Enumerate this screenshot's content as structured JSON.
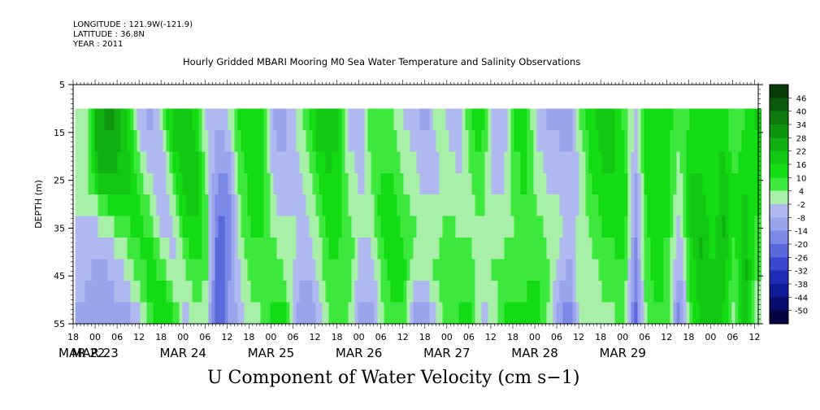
{
  "header": {
    "longitude": "LONGITUDE : 121.9W(-121.9)",
    "latitude": "LATITUDE : 36.8N",
    "year": "YEAR : 2011",
    "title": "Hourly Gridded MBARI Mooring M0 Sea Water Temperature and Salinity Observations"
  },
  "chart_data": {
    "type": "heatmap",
    "title": "Hourly Gridded MBARI Mooring M0 Sea Water Temperature and Salinity Observations",
    "xlabel": "",
    "ylabel": "DEPTH (m)",
    "variable": "U Component of Water Velocity (cm s-1)",
    "y_ticks": [
      5,
      15,
      25,
      35,
      45,
      55
    ],
    "y_range": [
      5,
      55
    ],
    "x_hour_ticks": [
      "18",
      "00",
      "06",
      "12",
      "18",
      "00",
      "06",
      "12",
      "18",
      "00",
      "06",
      "12",
      "18",
      "00",
      "06",
      "12",
      "18",
      "00",
      "06",
      "12",
      "18",
      "00",
      "06",
      "12",
      "18",
      "00",
      "06",
      "12",
      "18",
      "00",
      "06",
      "12",
      "18",
      "00",
      "06",
      "12",
      "18"
    ],
    "x_day_labels": [
      "MAR 22",
      "MAR 23",
      "MAR 24",
      "MAR 25",
      "MAR 26",
      "MAR 27",
      "MAR 28",
      "MAR 29"
    ],
    "colorbar_levels": [
      "46",
      "40",
      "34",
      "28",
      "22",
      "16",
      "10",
      "4",
      "-2",
      "-8",
      "-14",
      "-20",
      "-26",
      "-32",
      "-38",
      "-44",
      "-50"
    ],
    "colorbar_colors": [
      "#083a08",
      "#0a5a0a",
      "#0c7a0c",
      "#0e950e",
      "#10b010",
      "#12c812",
      "#14dc14",
      "#3ce83c",
      "#a8f0a8",
      "#b0b8f0",
      "#9aa4ec",
      "#7c88e6",
      "#5a68dc",
      "#3848d0",
      "#1e2cb8",
      "#101a96",
      "#080c6c",
      "#040440"
    ],
    "data_start_depth": 10,
    "grid": false,
    "columns": [
      {
        "t": 0.5,
        "v": [
          0,
          -1,
          -2,
          -1,
          -2,
          -3,
          -4,
          -5,
          -6,
          -10
        ]
      },
      {
        "t": 3,
        "v": [
          0,
          1,
          0,
          -1,
          -2,
          -4,
          -6,
          -6,
          -8,
          -12
        ]
      },
      {
        "t": 6,
        "v": [
          24,
          24,
          22,
          16,
          4,
          -2,
          -6,
          -10,
          -10,
          -12
        ]
      },
      {
        "t": 9,
        "v": [
          30,
          28,
          24,
          18,
          10,
          2,
          -4,
          -8,
          -10,
          -12
        ]
      },
      {
        "t": 12,
        "v": [
          26,
          24,
          22,
          18,
          12,
          6,
          0,
          -4,
          -6,
          -10
        ]
      },
      {
        "t": 15,
        "v": [
          12,
          14,
          16,
          18,
          14,
          10,
          6,
          2,
          -2,
          -8
        ]
      },
      {
        "t": 18,
        "v": [
          -6,
          -2,
          2,
          6,
          10,
          12,
          10,
          8,
          4,
          -2
        ]
      },
      {
        "t": 21,
        "v": [
          -10,
          -8,
          -6,
          -2,
          2,
          6,
          10,
          12,
          14,
          10
        ]
      },
      {
        "t": 24,
        "v": [
          4,
          -2,
          -6,
          -8,
          -8,
          -4,
          0,
          6,
          12,
          16
        ]
      },
      {
        "t": 27,
        "v": [
          18,
          16,
          12,
          8,
          2,
          -2,
          -4,
          -2,
          4,
          10
        ]
      },
      {
        "t": 30,
        "v": [
          20,
          22,
          20,
          18,
          16,
          12,
          8,
          4,
          -2,
          -6
        ]
      },
      {
        "t": 33,
        "v": [
          14,
          16,
          18,
          20,
          18,
          16,
          14,
          10,
          6,
          2
        ]
      },
      {
        "t": 36,
        "v": [
          -4,
          -2,
          0,
          2,
          4,
          6,
          6,
          4,
          2,
          -2
        ]
      },
      {
        "t": 39,
        "v": [
          -8,
          -10,
          -12,
          -16,
          -20,
          -22,
          -24,
          -24,
          -26,
          -28
        ]
      },
      {
        "t": 42,
        "v": [
          -2,
          -6,
          -10,
          -14,
          -16,
          -18,
          -18,
          -16,
          -14,
          -14
        ]
      },
      {
        "t": 45,
        "v": [
          12,
          10,
          8,
          6,
          4,
          2,
          0,
          -2,
          -4,
          -6
        ]
      },
      {
        "t": 48,
        "v": [
          16,
          14,
          14,
          12,
          12,
          10,
          8,
          6,
          4,
          2
        ]
      },
      {
        "t": 51,
        "v": [
          12,
          12,
          14,
          14,
          14,
          12,
          10,
          8,
          6,
          4
        ]
      },
      {
        "t": 54,
        "v": [
          -8,
          -6,
          -4,
          -2,
          0,
          2,
          6,
          8,
          10,
          12
        ]
      },
      {
        "t": 57,
        "v": [
          -10,
          -10,
          -8,
          -6,
          -4,
          -2,
          0,
          4,
          8,
          12
        ]
      },
      {
        "t": 60,
        "v": [
          -2,
          -4,
          -6,
          -6,
          -4,
          -2,
          -2,
          -4,
          -6,
          -8
        ]
      },
      {
        "t": 63,
        "v": [
          6,
          4,
          2,
          0,
          -2,
          -4,
          -6,
          -8,
          -10,
          -12
        ]
      },
      {
        "t": 66,
        "v": [
          18,
          16,
          12,
          8,
          4,
          2,
          0,
          -2,
          -6,
          -8
        ]
      },
      {
        "t": 69,
        "v": [
          22,
          20,
          18,
          16,
          14,
          12,
          10,
          8,
          6,
          4
        ]
      },
      {
        "t": 72,
        "v": [
          16,
          16,
          14,
          14,
          12,
          12,
          10,
          10,
          8,
          6
        ]
      },
      {
        "t": 75,
        "v": [
          -4,
          -2,
          0,
          2,
          4,
          6,
          8,
          8,
          6,
          4
        ]
      },
      {
        "t": 78,
        "v": [
          -8,
          -6,
          -4,
          -4,
          -2,
          -2,
          -4,
          -6,
          -8,
          -10
        ]
      },
      {
        "t": 81,
        "v": [
          10,
          8,
          6,
          4,
          2,
          0,
          -2,
          -6,
          -8,
          -10
        ]
      },
      {
        "t": 84,
        "v": [
          6,
          8,
          10,
          12,
          14,
          12,
          10,
          8,
          6,
          4
        ]
      },
      {
        "t": 87,
        "v": [
          4,
          6,
          8,
          10,
          12,
          14,
          16,
          14,
          12,
          10
        ]
      },
      {
        "t": 90,
        "v": [
          -2,
          0,
          2,
          4,
          6,
          8,
          10,
          12,
          10,
          8
        ]
      },
      {
        "t": 93,
        "v": [
          -6,
          -4,
          -2,
          0,
          2,
          4,
          2,
          -2,
          -8,
          -14
        ]
      },
      {
        "t": 96,
        "v": [
          -10,
          -8,
          -6,
          -4,
          -2,
          0,
          2,
          0,
          -6,
          -12
        ]
      },
      {
        "t": 99,
        "v": [
          2,
          0,
          -2,
          -2,
          0,
          2,
          4,
          6,
          4,
          0
        ]
      },
      {
        "t": 102,
        "v": [
          -4,
          -2,
          0,
          2,
          4,
          6,
          8,
          10,
          10,
          8
        ]
      },
      {
        "t": 105,
        "v": [
          -6,
          -4,
          -4,
          -2,
          0,
          2,
          4,
          6,
          8,
          10
        ]
      },
      {
        "t": 108,
        "v": [
          10,
          8,
          6,
          4,
          2,
          2,
          4,
          6,
          8,
          10
        ]
      },
      {
        "t": 111,
        "v": [
          14,
          12,
          10,
          8,
          6,
          4,
          2,
          0,
          -2,
          -4
        ]
      },
      {
        "t": 114,
        "v": [
          -2,
          -4,
          -6,
          -4,
          -2,
          0,
          2,
          4,
          2,
          0
        ]
      },
      {
        "t": 117,
        "v": [
          -8,
          -6,
          -4,
          -2,
          0,
          2,
          4,
          6,
          8,
          10
        ]
      },
      {
        "t": 120,
        "v": [
          12,
          10,
          8,
          6,
          6,
          4,
          4,
          6,
          8,
          10
        ]
      },
      {
        "t": 123,
        "v": [
          14,
          14,
          12,
          12,
          10,
          10,
          8,
          8,
          10,
          12
        ]
      },
      {
        "t": 126,
        "v": [
          -4,
          -2,
          0,
          2,
          4,
          6,
          8,
          10,
          12,
          14
        ]
      },
      {
        "t": 129,
        "v": [
          -8,
          -6,
          -4,
          -2,
          0,
          2,
          4,
          6,
          6,
          4
        ]
      },
      {
        "t": 132,
        "v": [
          -10,
          -8,
          -6,
          -4,
          -2,
          0,
          -2,
          -4,
          -8,
          -12
        ]
      },
      {
        "t": 135,
        "v": [
          -12,
          -10,
          -8,
          -8,
          -6,
          -6,
          -8,
          -10,
          -14,
          -18
        ]
      },
      {
        "t": 138,
        "v": [
          4,
          2,
          0,
          -2,
          -2,
          0,
          2,
          4,
          4,
          2
        ]
      },
      {
        "t": 141,
        "v": [
          14,
          14,
          12,
          10,
          8,
          6,
          4,
          2,
          0,
          -2
        ]
      },
      {
        "t": 144,
        "v": [
          20,
          18,
          16,
          14,
          12,
          10,
          8,
          6,
          4,
          2
        ]
      },
      {
        "t": 147,
        "v": [
          18,
          18,
          16,
          16,
          14,
          12,
          10,
          8,
          6,
          4
        ]
      },
      {
        "t": 150,
        "v": [
          8,
          10,
          12,
          14,
          16,
          14,
          12,
          10,
          8,
          6
        ]
      },
      {
        "t": 153,
        "v": [
          -4,
          -6,
          -8,
          -10,
          -12,
          -14,
          -16,
          -18,
          -20,
          -22
        ]
      },
      {
        "t": 156,
        "v": [
          16,
          14,
          12,
          12,
          10,
          10,
          8,
          8,
          6,
          6
        ]
      },
      {
        "t": 159,
        "v": [
          14,
          14,
          14,
          14,
          14,
          14,
          12,
          12,
          12,
          10
        ]
      },
      {
        "t": 162,
        "v": [
          12,
          12,
          12,
          10,
          10,
          10,
          8,
          8,
          8,
          6
        ]
      },
      {
        "t": 165,
        "v": [
          6,
          4,
          2,
          0,
          -2,
          -4,
          -6,
          -10,
          -14,
          -18
        ]
      },
      {
        "t": 168,
        "v": [
          10,
          12,
          14,
          16,
          18,
          16,
          14,
          12,
          10,
          8
        ]
      },
      {
        "t": 171,
        "v": [
          12,
          14,
          16,
          18,
          20,
          22,
          24,
          22,
          20,
          18
        ]
      },
      {
        "t": 174,
        "v": [
          16,
          14,
          12,
          10,
          10,
          12,
          14,
          16,
          18,
          20
        ]
      },
      {
        "t": 177,
        "v": [
          14,
          16,
          18,
          20,
          22,
          24,
          22,
          20,
          18,
          16
        ]
      },
      {
        "t": 180,
        "v": [
          4,
          6,
          8,
          10,
          12,
          10,
          8,
          6,
          4,
          2
        ]
      },
      {
        "t": 183,
        "v": [
          10,
          12,
          14,
          16,
          18,
          20,
          22,
          24,
          22,
          20
        ]
      },
      {
        "t": 186,
        "v": [
          18,
          16,
          14,
          12,
          10,
          8,
          6,
          4,
          2,
          0
        ]
      }
    ],
    "hours_span": 187
  },
  "footer": {
    "variable_title": "U Component of Water Velocity (cm s−1)"
  }
}
